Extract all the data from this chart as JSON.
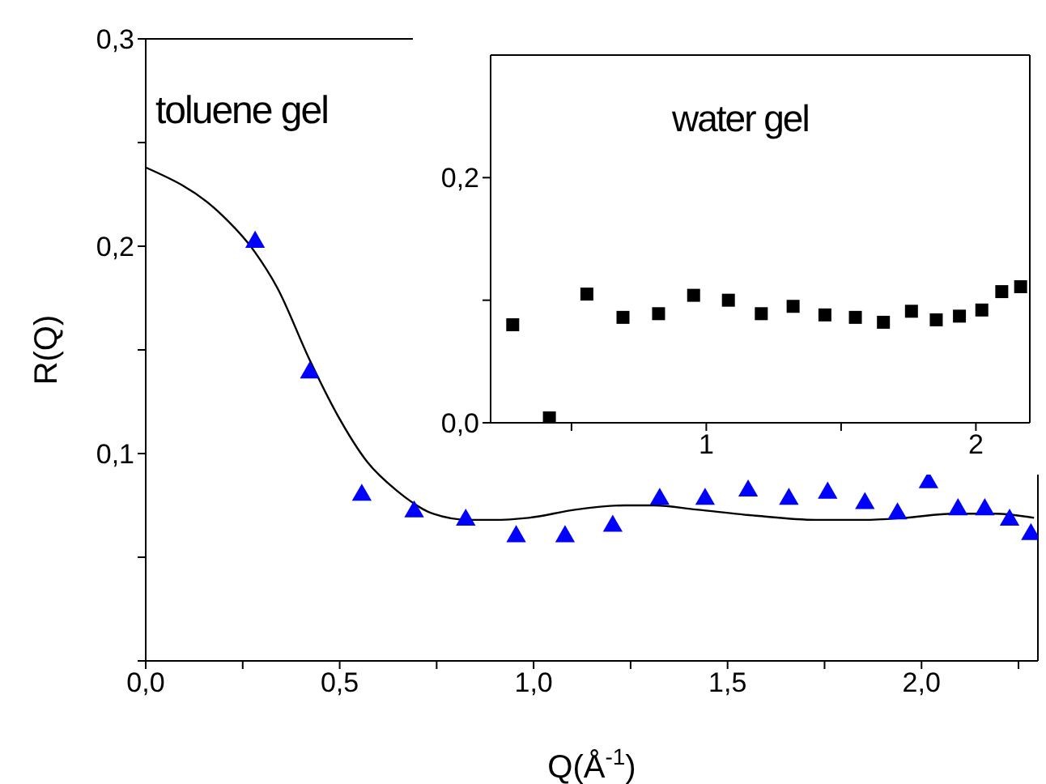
{
  "chart_data": [
    {
      "type": "scatter",
      "xlabel": "Q(Å$^{-1}$)",
      "ylabel": "R(Q)",
      "annotations": [
        "toluene gel"
      ],
      "xlim": [
        0,
        2.3
      ],
      "ylim": [
        0,
        0.3
      ],
      "xticks": [
        {
          "value": 0,
          "label": "0,0"
        },
        {
          "value": 0.25,
          "label": null
        },
        {
          "value": 0.5,
          "label": "0,5"
        },
        {
          "value": 0.75,
          "label": null
        },
        {
          "value": 1,
          "label": "1,0"
        },
        {
          "value": 1.25,
          "label": null
        },
        {
          "value": 1.5,
          "label": "1,5"
        },
        {
          "value": 1.75,
          "label": null
        },
        {
          "value": 2,
          "label": "2,0"
        },
        {
          "value": 2.25,
          "label": null
        }
      ],
      "yticks": [
        {
          "value": 0,
          "label": null
        },
        {
          "value": 0.05,
          "label": null
        },
        {
          "value": 0.1,
          "label": "0,1"
        },
        {
          "value": 0.15,
          "label": null
        },
        {
          "value": 0.2,
          "label": "0,2"
        },
        {
          "value": 0.25,
          "label": null
        },
        {
          "value": 0.3,
          "label": "0,3"
        }
      ],
      "series": [
        {
          "marker": "triangle",
          "color": "#0000ff",
          "x": [
            0.282,
            0.423,
            0.557,
            0.692,
            0.825,
            0.955,
            1.081,
            1.204,
            1.325,
            1.442,
            1.553,
            1.658,
            1.758,
            1.854,
            1.938,
            2.018,
            2.094,
            2.163,
            2.227,
            2.282
          ],
          "values": [
            0.202,
            0.139,
            0.08,
            0.072,
            0.068,
            0.06,
            0.06,
            0.065,
            0.078,
            0.078,
            0.082,
            0.078,
            0.081,
            0.076,
            0.071,
            0.086,
            0.073,
            0.073,
            0.068,
            0.061
          ]
        },
        {
          "type": "line",
          "marker": "none",
          "color": "#000000",
          "x": [
            0,
            0.185,
            0.282,
            0.339,
            0.423,
            0.493,
            0.571,
            0.648,
            0.74,
            0.833,
            0.894,
            0.987,
            1.11,
            1.234,
            1.311,
            1.419,
            1.573,
            1.727,
            1.85,
            1.958,
            2.082,
            2.19,
            2.29
          ],
          "values": [
            0.238,
            0.217,
            0.197,
            0.18,
            0.145,
            0.119,
            0.096,
            0.082,
            0.071,
            0.068,
            0.068,
            0.069,
            0.073,
            0.075,
            0.075,
            0.073,
            0.07,
            0.068,
            0.068,
            0.069,
            0.071,
            0.071,
            0.069
          ]
        }
      ]
    },
    {
      "type": "scatter",
      "annotations": [
        "water gel"
      ],
      "xlim": [
        0.2,
        2.2
      ],
      "ylim": [
        0,
        0.3
      ],
      "xticks": [
        {
          "value": 0.5,
          "label": null
        },
        {
          "value": 1,
          "label": "1"
        },
        {
          "value": 1.5,
          "label": null
        },
        {
          "value": 2,
          "label": "2"
        }
      ],
      "yticks": [
        {
          "value": 0,
          "label": "0,0"
        },
        {
          "value": 0.1,
          "label": null
        },
        {
          "value": 0.2,
          "label": "0,2"
        }
      ],
      "series": [
        {
          "marker": "square",
          "color": "#000000",
          "x": [
            0.282,
            0.418,
            0.557,
            0.691,
            0.823,
            0.953,
            1.082,
            1.204,
            1.322,
            1.44,
            1.553,
            1.657,
            1.761,
            1.853,
            1.939,
            2.022,
            2.096,
            2.166
          ],
          "values": [
            0.08,
            0.004,
            0.105,
            0.086,
            0.089,
            0.104,
            0.1,
            0.089,
            0.095,
            0.088,
            0.086,
            0.082,
            0.091,
            0.084,
            0.087,
            0.092,
            0.107,
            0.111
          ]
        }
      ]
    }
  ]
}
